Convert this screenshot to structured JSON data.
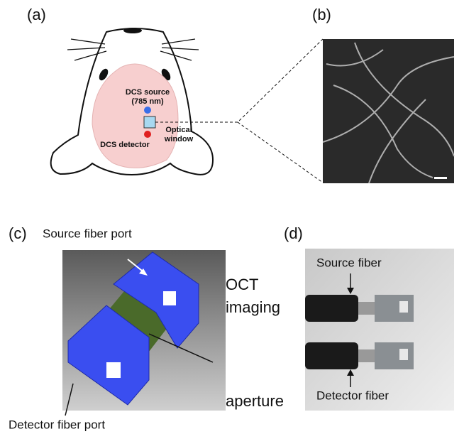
{
  "panels": [
    {
      "label": "(a)",
      "annotations": [
        "DCS source",
        "(785 nm)",
        "Optical",
        "window",
        "DCS detector"
      ]
    },
    {
      "label": "(b)"
    },
    {
      "label": "(c)",
      "annotations": [
        "Source fiber port",
        "OCT",
        "imaging",
        "aperture",
        "Detector fiber port"
      ]
    },
    {
      "label": "(d)",
      "annotations": [
        "Source fiber",
        "Detector fiber"
      ]
    }
  ]
}
